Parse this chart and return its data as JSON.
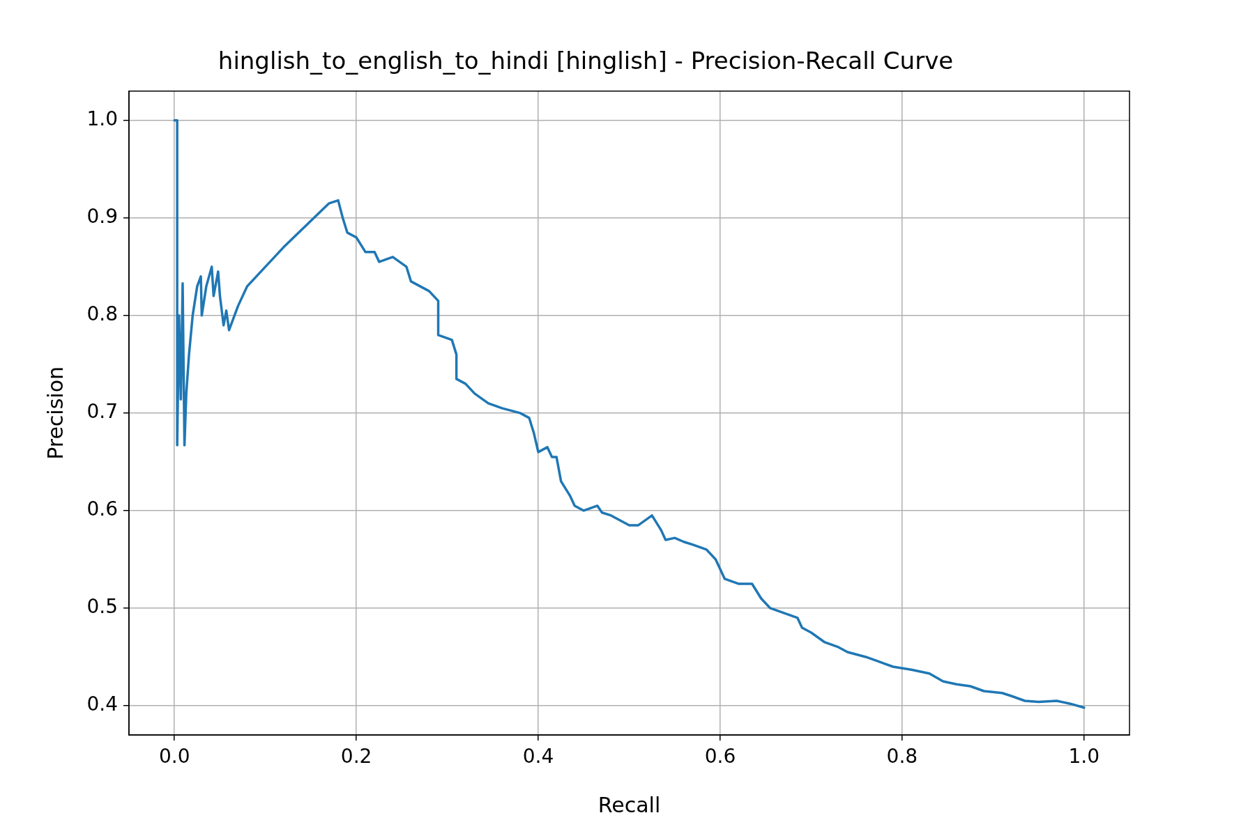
{
  "chart_data": {
    "type": "line",
    "title": "hinglish_to_english_to_hindi [hinglish] - Precision-Recall Curve",
    "xlabel": "Recall",
    "ylabel": "Precision",
    "x": [
      0,
      0.003,
      0.003,
      0.005,
      0.007,
      0.009,
      0.01,
      0.011,
      0.013,
      0.016,
      0.02,
      0.025,
      0.029,
      0.03,
      0.035,
      0.041,
      0.043,
      0.048,
      0.05,
      0.054,
      0.057,
      0.06,
      0.07,
      0.08,
      0.12,
      0.17,
      0.18,
      0.185,
      0.19,
      0.2,
      0.21,
      0.22,
      0.225,
      0.24,
      0.255,
      0.26,
      0.28,
      0.29,
      0.29,
      0.305,
      0.31,
      0.31,
      0.32,
      0.33,
      0.345,
      0.36,
      0.38,
      0.39,
      0.395,
      0.4,
      0.41,
      0.415,
      0.42,
      0.425,
      0.435,
      0.44,
      0.45,
      0.465,
      0.47,
      0.48,
      0.49,
      0.5,
      0.51,
      0.525,
      0.535,
      0.54,
      0.55,
      0.56,
      0.57,
      0.585,
      0.595,
      0.605,
      0.62,
      0.635,
      0.645,
      0.655,
      0.67,
      0.685,
      0.69,
      0.7,
      0.715,
      0.73,
      0.74,
      0.76,
      0.775,
      0.79,
      0.81,
      0.82,
      0.83,
      0.845,
      0.86,
      0.875,
      0.89,
      0.91,
      0.92,
      0.935,
      0.95,
      0.97,
      0.985,
      1.0
    ],
    "series": [
      {
        "color": "#1f77b4",
        "values": [
          1.0,
          1.0,
          0.667,
          0.8,
          0.714,
          0.833,
          0.75,
          0.667,
          0.72,
          0.76,
          0.8,
          0.83,
          0.84,
          0.8,
          0.83,
          0.85,
          0.82,
          0.845,
          0.82,
          0.79,
          0.805,
          0.785,
          0.81,
          0.83,
          0.87,
          0.915,
          0.918,
          0.9,
          0.885,
          0.88,
          0.865,
          0.865,
          0.855,
          0.86,
          0.85,
          0.835,
          0.825,
          0.815,
          0.78,
          0.775,
          0.76,
          0.735,
          0.73,
          0.72,
          0.71,
          0.705,
          0.7,
          0.695,
          0.68,
          0.66,
          0.665,
          0.655,
          0.655,
          0.63,
          0.615,
          0.605,
          0.6,
          0.605,
          0.598,
          0.595,
          0.59,
          0.585,
          0.585,
          0.595,
          0.58,
          0.57,
          0.572,
          0.568,
          0.565,
          0.56,
          0.55,
          0.53,
          0.525,
          0.525,
          0.51,
          0.5,
          0.495,
          0.49,
          0.48,
          0.475,
          0.465,
          0.46,
          0.455,
          0.45,
          0.445,
          0.44,
          0.437,
          0.435,
          0.433,
          0.425,
          0.422,
          0.42,
          0.415,
          0.413,
          0.41,
          0.405,
          0.404,
          0.405,
          0.402,
          0.398
        ]
      }
    ],
    "xlim": [
      -0.05,
      1.05
    ],
    "ylim": [
      0.37,
      1.03
    ],
    "xticks": [
      {
        "value": 0,
        "label": "0.0"
      },
      0.2,
      0.4,
      0.6,
      0.8,
      {
        "value": 1,
        "label": "1.0"
      }
    ],
    "yticks": [
      0.4,
      0.5,
      0.6,
      0.7,
      0.8,
      0.9,
      {
        "value": 1,
        "label": "1.0"
      }
    ],
    "grid": true,
    "legend": false,
    "marker": "none",
    "line_style": "solid"
  }
}
